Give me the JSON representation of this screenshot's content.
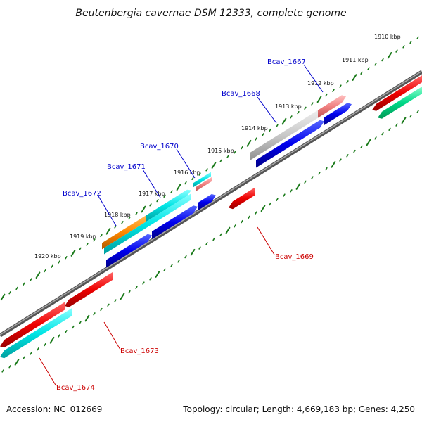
{
  "header": {
    "title": "Beutenbergia cavernae DSM 12333, complete genome"
  },
  "footer": {
    "accession": "Accession: NC_012669",
    "topology": "Topology: circular; Length: 4,669,183 bp; Genes: 4,250"
  },
  "ruler": {
    "labels": [
      "1910 kbp",
      "1911 kbp",
      "1912 kbp",
      "1913 kbp",
      "1914 kbp",
      "1915 kbp",
      "1916 kbp",
      "1917 kbp",
      "1918 kbp",
      "1919 kbp",
      "1920 kbp"
    ]
  },
  "genes": [
    {
      "name": "Bcav_1667",
      "strand": "forward",
      "color": "#0000cc"
    },
    {
      "name": "Bcav_1668",
      "strand": "forward",
      "color": "#0000cc"
    },
    {
      "name": "Bcav_1669",
      "strand": "reverse",
      "color": "#cc0000"
    },
    {
      "name": "Bcav_1670",
      "strand": "forward",
      "color": "#0000cc"
    },
    {
      "name": "Bcav_1671",
      "strand": "forward",
      "color": "#0000cc"
    },
    {
      "name": "Bcav_1672",
      "strand": "forward",
      "color": "#0000cc"
    },
    {
      "name": "Bcav_1673",
      "strand": "reverse",
      "color": "#cc0000"
    },
    {
      "name": "Bcav_1674",
      "strand": "reverse",
      "color": "#cc0000"
    }
  ],
  "colors": {
    "backbone": "#777777",
    "tick": "#1a7a1a",
    "cds_forward": "#0000ee",
    "cds_reverse": "#ee0000",
    "feature_cyan": "#00e5e5",
    "feature_orange": "#ff8800",
    "feature_pink": "#f08080",
    "feature_grey": "#c8c8c8",
    "feature_green": "#00d888"
  }
}
